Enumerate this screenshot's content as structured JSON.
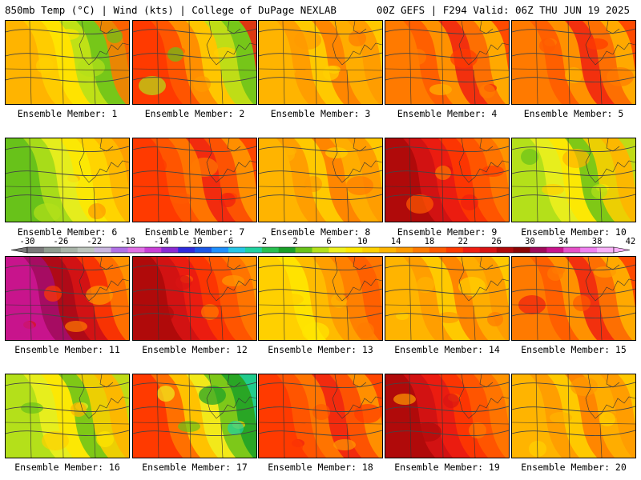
{
  "header": {
    "left": "850mb Temp (°C) | Wind (kts) | College of DuPage NEXLAB",
    "right": "00Z GEFS | F294 Valid: 06Z THU JUN 19 2025"
  },
  "caption_prefix": "Ensemble Member: ",
  "members": [
    {
      "number": "1",
      "tone": "warm-west-green-ne"
    },
    {
      "number": "2",
      "tone": "hot-west-green-ne"
    },
    {
      "number": "3",
      "tone": "orange"
    },
    {
      "number": "4",
      "tone": "orange-red"
    },
    {
      "number": "5",
      "tone": "orange-red"
    },
    {
      "number": "6",
      "tone": "green-north-orange-south"
    },
    {
      "number": "7",
      "tone": "red-orange"
    },
    {
      "number": "8",
      "tone": "orange"
    },
    {
      "number": "9",
      "tone": "hot-west"
    },
    {
      "number": "10",
      "tone": "yellow-green"
    },
    {
      "number": "11",
      "tone": "very-hot-west"
    },
    {
      "number": "12",
      "tone": "hot-west"
    },
    {
      "number": "13",
      "tone": "orange-yellow-north"
    },
    {
      "number": "14",
      "tone": "orange"
    },
    {
      "number": "15",
      "tone": "orange-red"
    },
    {
      "number": "16",
      "tone": "yellow-green"
    },
    {
      "number": "17",
      "tone": "cool-east-hot-west"
    },
    {
      "number": "18",
      "tone": "red-orange"
    },
    {
      "number": "19",
      "tone": "hot-west"
    },
    {
      "number": "20",
      "tone": "orange"
    }
  ],
  "colorbar": {
    "labels": [
      "-30",
      "-26",
      "-22",
      "-18",
      "-14",
      "-10",
      "-6",
      "-2",
      "2",
      "6",
      "10",
      "14",
      "18",
      "22",
      "26",
      "30",
      "34",
      "38",
      "42"
    ],
    "colors": [
      "#7a7a7a",
      "#8f9c8f",
      "#a8b4a8",
      "#bcc5bc",
      "#c9b6e0",
      "#b070e6",
      "#e070e6",
      "#c83fd6",
      "#8a2ad2",
      "#2d2adc",
      "#1a57e6",
      "#1e90ff",
      "#26c6e6",
      "#20d2a0",
      "#28c050",
      "#1aa028",
      "#68c21a",
      "#b4e01a",
      "#f0f01e",
      "#ffe600",
      "#ffd000",
      "#ffb400",
      "#ff9a00",
      "#ff7a00",
      "#ff5a00",
      "#ff3a00",
      "#f01e10",
      "#d81414",
      "#b00a0a",
      "#8c0505",
      "#a00a5a",
      "#c8148c",
      "#e650c8",
      "#f080f0",
      "#f8b0f8"
    ]
  }
}
